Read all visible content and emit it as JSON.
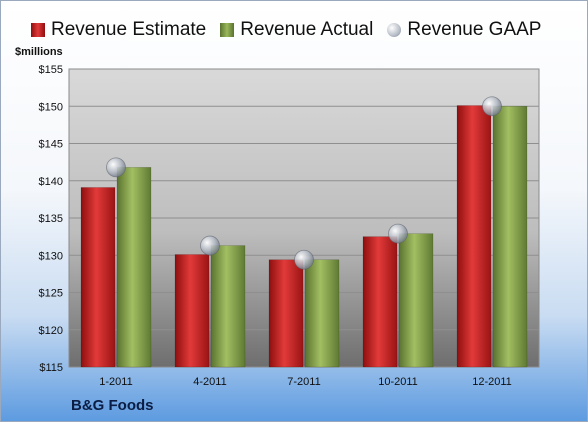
{
  "chart_data": {
    "type": "bar",
    "title": "",
    "ylabel": "$millions",
    "xlabel": "",
    "company": "B&G Foods",
    "categories": [
      "1-2011",
      "4-2011",
      "7-2011",
      "10-2011",
      "12-2011"
    ],
    "series": [
      {
        "name": "Revenue Estimate",
        "kind": "bar",
        "color": "#cc1f1f",
        "values": [
          139.1,
          130.1,
          129.4,
          132.5,
          150.1
        ]
      },
      {
        "name": "Revenue Actual",
        "kind": "bar",
        "color": "#7f9a42",
        "values": [
          141.8,
          131.3,
          129.4,
          132.9,
          150.0
        ]
      },
      {
        "name": "Revenue GAAP",
        "kind": "marker",
        "color": "#b8bec8",
        "values": [
          141.8,
          131.3,
          129.4,
          132.9,
          150.0
        ]
      }
    ],
    "ylim": [
      115,
      155
    ],
    "yticks": [
      "$115",
      "$120",
      "$125",
      "$130",
      "$135",
      "$140",
      "$145",
      "$150",
      "$155"
    ],
    "grid": true,
    "legend_position": "top"
  }
}
